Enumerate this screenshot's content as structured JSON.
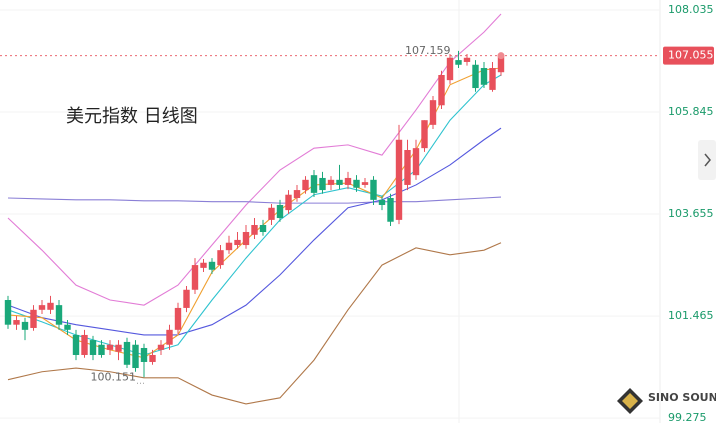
{
  "chart_data": {
    "type": "candlestick",
    "title": "美元指数 日线图",
    "watermark": "SINO SOUND",
    "ylim": [
      99.17,
      108.25
    ],
    "yticks": [
      108.035,
      105.845,
      103.655,
      101.465,
      99.275
    ],
    "grid": true,
    "up_color": "#e8505b",
    "down_color": "#1aa87a",
    "ohlc": [
      [
        101.81,
        101.9,
        101.19,
        101.28
      ],
      [
        101.28,
        101.47,
        101.17,
        101.38
      ],
      [
        101.34,
        101.43,
        100.95,
        101.17
      ],
      [
        101.21,
        101.7,
        101.15,
        101.6
      ],
      [
        101.6,
        101.81,
        101.51,
        101.7
      ],
      [
        101.6,
        101.9,
        101.51,
        101.75
      ],
      [
        101.7,
        101.81,
        101.17,
        101.28
      ],
      [
        101.28,
        101.38,
        101.06,
        101.17
      ],
      [
        101.06,
        101.17,
        100.52,
        100.63
      ],
      [
        100.63,
        101.17,
        100.57,
        101.06
      ],
      [
        100.95,
        101.04,
        100.52,
        100.63
      ],
      [
        100.85,
        100.95,
        100.57,
        100.63
      ],
      [
        100.74,
        100.95,
        100.63,
        100.85
      ],
      [
        100.7,
        100.95,
        100.52,
        100.85
      ],
      [
        100.91,
        101.0,
        100.35,
        100.42
      ],
      [
        100.85,
        100.95,
        100.27,
        100.35
      ],
      [
        100.78,
        100.87,
        100.151,
        100.48
      ],
      [
        100.48,
        100.74,
        100.42,
        100.63
      ],
      [
        100.74,
        100.95,
        100.63,
        100.85
      ],
      [
        100.85,
        101.28,
        100.74,
        101.17
      ],
      [
        101.17,
        101.75,
        101.08,
        101.64
      ],
      [
        101.64,
        102.11,
        101.55,
        102.03
      ],
      [
        102.03,
        102.71,
        101.94,
        102.56
      ],
      [
        102.5,
        102.69,
        102.41,
        102.61
      ],
      [
        102.63,
        102.71,
        102.37,
        102.46
      ],
      [
        102.56,
        102.99,
        102.48,
        102.88
      ],
      [
        102.88,
        103.19,
        102.8,
        103.04
      ],
      [
        102.99,
        103.27,
        102.91,
        103.1
      ],
      [
        102.99,
        103.42,
        102.91,
        103.27
      ],
      [
        103.21,
        103.57,
        103.12,
        103.42
      ],
      [
        103.42,
        103.53,
        103.19,
        103.27
      ],
      [
        103.53,
        103.87,
        103.42,
        103.79
      ],
      [
        103.85,
        103.96,
        103.49,
        103.57
      ],
      [
        103.74,
        104.17,
        103.66,
        104.07
      ],
      [
        104.0,
        104.28,
        103.92,
        104.17
      ],
      [
        104.17,
        104.47,
        104.09,
        104.39
      ],
      [
        104.49,
        104.6,
        104.02,
        104.11
      ],
      [
        104.43,
        104.56,
        104.09,
        104.17
      ],
      [
        104.28,
        104.47,
        104.17,
        104.39
      ],
      [
        104.39,
        104.71,
        104.19,
        104.28
      ],
      [
        104.28,
        104.56,
        104.19,
        104.43
      ],
      [
        104.39,
        104.49,
        104.13,
        104.22
      ],
      [
        104.28,
        104.43,
        104.22,
        104.34
      ],
      [
        104.39,
        104.47,
        103.85,
        103.96
      ],
      [
        103.96,
        104.04,
        103.74,
        103.85
      ],
      [
        104.0,
        104.09,
        103.4,
        103.49
      ],
      [
        103.53,
        105.57,
        103.44,
        105.25
      ],
      [
        104.28,
        105.25,
        104.17,
        105.03
      ],
      [
        104.49,
        105.25,
        104.39,
        105.07
      ],
      [
        105.07,
        105.67,
        104.99,
        105.67
      ],
      [
        105.57,
        106.19,
        105.48,
        106.1
      ],
      [
        105.99,
        106.73,
        105.91,
        106.64
      ],
      [
        106.53,
        107.09,
        106.45,
        107.01
      ],
      [
        106.96,
        107.159,
        106.79,
        106.86
      ],
      [
        106.92,
        107.09,
        106.84,
        107.01
      ],
      [
        106.86,
        106.96,
        106.28,
        106.36
      ],
      [
        106.79,
        106.92,
        106.36,
        106.43
      ],
      [
        106.32,
        106.92,
        106.28,
        106.79
      ],
      [
        106.7,
        107.1,
        106.62,
        107.055
      ]
    ],
    "lines": [
      {
        "color": "#e27cd6",
        "x": [
          0,
          4,
          8,
          12,
          16,
          20,
          24,
          28,
          32,
          36,
          40,
          44,
          48,
          52,
          56,
          58
        ],
        "values": [
          103.57,
          102.88,
          102.13,
          101.81,
          101.7,
          102.13,
          102.99,
          103.85,
          104.6,
          105.07,
          105.14,
          104.92,
          105.89,
          106.92,
          107.56,
          107.95
        ]
      },
      {
        "color": "#b0784a",
        "x": [
          0,
          4,
          8,
          12,
          16,
          20,
          24,
          28,
          32,
          36,
          40,
          44,
          48,
          52,
          56,
          58
        ],
        "values": [
          100.1,
          100.27,
          100.35,
          100.27,
          100.14,
          100.14,
          99.77,
          99.58,
          99.71,
          100.52,
          101.6,
          102.56,
          102.93,
          102.78,
          102.88,
          103.04
        ]
      },
      {
        "color": "#8a7fd6",
        "x": [
          0,
          4,
          8,
          12,
          16,
          20,
          24,
          28,
          32,
          36,
          40,
          44,
          48,
          52,
          56,
          58
        ],
        "values": [
          104.0,
          103.98,
          103.96,
          103.96,
          103.94,
          103.94,
          103.92,
          103.92,
          103.89,
          103.89,
          103.89,
          103.92,
          103.92,
          103.96,
          104.0,
          104.02
        ]
      },
      {
        "color": "#5558de",
        "x": [
          0,
          4,
          8,
          12,
          16,
          20,
          24,
          28,
          32,
          36,
          40,
          44,
          48,
          52,
          56,
          58
        ],
        "values": [
          101.7,
          101.43,
          101.28,
          101.17,
          101.06,
          101.06,
          101.28,
          101.7,
          102.35,
          103.1,
          103.79,
          103.96,
          104.28,
          104.71,
          105.25,
          105.5
        ]
      },
      {
        "color": "#2fc3cf",
        "x": [
          0,
          4,
          8,
          12,
          16,
          20,
          24,
          28,
          32,
          36,
          40,
          44,
          48,
          52,
          56,
          58
        ],
        "values": [
          101.6,
          101.34,
          101.06,
          100.85,
          100.63,
          100.85,
          101.81,
          102.71,
          103.53,
          104.07,
          104.22,
          104.04,
          104.6,
          105.67,
          106.43,
          106.64
        ]
      },
      {
        "color": "#f0a030",
        "x": [
          0,
          4,
          8,
          12,
          16,
          20,
          24,
          28,
          32,
          36,
          40,
          44,
          48,
          52,
          56,
          58
        ],
        "values": [
          101.49,
          101.43,
          100.95,
          100.74,
          100.57,
          101.06,
          102.41,
          103.1,
          103.74,
          104.28,
          104.32,
          104.0,
          105.03,
          106.43,
          106.75,
          106.79
        ]
      }
    ]
  }
}
